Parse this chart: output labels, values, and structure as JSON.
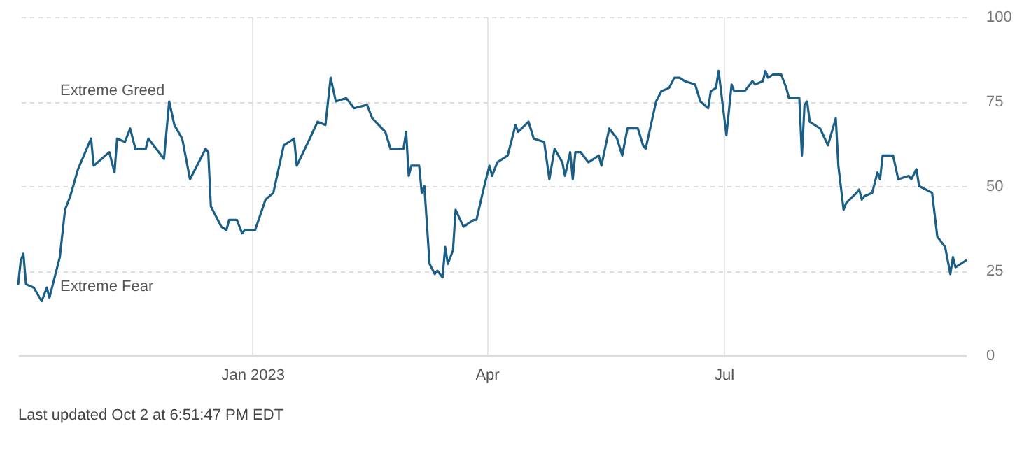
{
  "chart_data": {
    "type": "line",
    "x": [
      "2022-10-03",
      "2022-10-04",
      "2022-10-05",
      "2022-10-06",
      "2022-10-09",
      "2022-10-12",
      "2022-10-14",
      "2022-10-15",
      "2022-10-17",
      "2022-10-19",
      "2022-10-21",
      "2022-10-23",
      "2022-10-26",
      "2022-10-31",
      "2022-11-01",
      "2022-11-07",
      "2022-11-09",
      "2022-11-10",
      "2022-11-13",
      "2022-11-15",
      "2022-11-17",
      "2022-11-21",
      "2022-11-22",
      "2022-11-28",
      "2022-11-30",
      "2022-12-02",
      "2022-12-05",
      "2022-12-08",
      "2022-12-14",
      "2022-12-15",
      "2022-12-16",
      "2022-12-20",
      "2022-12-22",
      "2022-12-23",
      "2022-12-26",
      "2022-12-28",
      "2022-12-29",
      "2023-01-02",
      "2023-01-06",
      "2023-01-09",
      "2023-01-13",
      "2023-01-17",
      "2023-01-18",
      "2023-01-23",
      "2023-01-26",
      "2023-01-29",
      "2023-01-31",
      "2023-02-02",
      "2023-02-06",
      "2023-02-09",
      "2023-02-14",
      "2023-02-16",
      "2023-02-21",
      "2023-02-23",
      "2023-02-28",
      "2023-03-01",
      "2023-03-02",
      "2023-03-03",
      "2023-03-06",
      "2023-03-07",
      "2023-03-08",
      "2023-03-10",
      "2023-03-12",
      "2023-03-13",
      "2023-03-15",
      "2023-03-16",
      "2023-03-17",
      "2023-03-19",
      "2023-03-20",
      "2023-03-23",
      "2023-03-27",
      "2023-03-28",
      "2023-03-31",
      "2023-04-02",
      "2023-04-03",
      "2023-04-05",
      "2023-04-09",
      "2023-04-10",
      "2023-04-12",
      "2023-04-13",
      "2023-04-17",
      "2023-04-19",
      "2023-04-23",
      "2023-04-25",
      "2023-04-27",
      "2023-04-30",
      "2023-05-01",
      "2023-05-03",
      "2023-05-04",
      "2023-05-05",
      "2023-05-07",
      "2023-05-09",
      "2023-05-10",
      "2023-05-14",
      "2023-05-15",
      "2023-05-18",
      "2023-05-21",
      "2023-05-23",
      "2023-05-25",
      "2023-05-29",
      "2023-05-31",
      "2023-06-01",
      "2023-06-05",
      "2023-06-07",
      "2023-06-10",
      "2023-06-12",
      "2023-06-14",
      "2023-06-16",
      "2023-06-20",
      "2023-06-22",
      "2023-06-25",
      "2023-06-26",
      "2023-06-28",
      "2023-06-29",
      "2023-07-02",
      "2023-07-04",
      "2023-07-05",
      "2023-07-09",
      "2023-07-12",
      "2023-07-13",
      "2023-07-16",
      "2023-07-17",
      "2023-07-18",
      "2023-07-20",
      "2023-07-23",
      "2023-07-25",
      "2023-07-26",
      "2023-07-30",
      "2023-07-31",
      "2023-08-01",
      "2023-08-02",
      "2023-08-03",
      "2023-08-07",
      "2023-08-10",
      "2023-08-13",
      "2023-08-14",
      "2023-08-16",
      "2023-08-17",
      "2023-08-21",
      "2023-08-22",
      "2023-08-23",
      "2023-08-24",
      "2023-08-27",
      "2023-08-29",
      "2023-08-30",
      "2023-08-31",
      "2023-09-04",
      "2023-09-06",
      "2023-09-10",
      "2023-09-11",
      "2023-09-13",
      "2023-09-14",
      "2023-09-19",
      "2023-09-21",
      "2023-09-24",
      "2023-09-26",
      "2023-09-27",
      "2023-09-28",
      "2023-10-02"
    ],
    "series": [
      {
        "color": "#1b5f86",
        "values": [
          21,
          28,
          30,
          21,
          20,
          16,
          20,
          17,
          23,
          29,
          43,
          47,
          55,
          64,
          56,
          60,
          54,
          64,
          63,
          67,
          61,
          61,
          64,
          58,
          75,
          68,
          64,
          52,
          61,
          60,
          44,
          38,
          37,
          40,
          40,
          36,
          37,
          37,
          46,
          48,
          62,
          64,
          56,
          64,
          69,
          68,
          82,
          75,
          76,
          73,
          74,
          70,
          66,
          61,
          61,
          66,
          53,
          56,
          56,
          48,
          50,
          27,
          24,
          25,
          23,
          32,
          27,
          31,
          43,
          38,
          40,
          40,
          50,
          56,
          53,
          57,
          59,
          62,
          68,
          66,
          69,
          64,
          63,
          52,
          61,
          57,
          53,
          60,
          52,
          60,
          60,
          58,
          57,
          59,
          56,
          67,
          64,
          59,
          67,
          67,
          62,
          61,
          75,
          78,
          79,
          82,
          82,
          81,
          80,
          75,
          73,
          78,
          79,
          84,
          65,
          80,
          78,
          78,
          81,
          80,
          81,
          84,
          82,
          83,
          83,
          79,
          76,
          76,
          59,
          74,
          75,
          69,
          67,
          62,
          70,
          56,
          43,
          45,
          48,
          49,
          46,
          47,
          48,
          54,
          52,
          59,
          59,
          52,
          53,
          52,
          55,
          50,
          48,
          35,
          32,
          24,
          29,
          26,
          28
        ]
      }
    ],
    "xlim": [
      "2022-10-03",
      "2023-10-02"
    ],
    "xticks": [
      {
        "value": "2023-01-01",
        "label": "Jan 2023"
      },
      {
        "value": "2023-04-01",
        "label": "Apr"
      },
      {
        "value": "2023-07-01",
        "label": "Jul"
      }
    ],
    "ylim": [
      0,
      100
    ],
    "yticks": [
      0,
      25,
      50,
      75,
      100
    ],
    "grid": true,
    "marker": "none",
    "line_style": "solid",
    "annotations": [
      "Extreme Greed",
      "Extreme Fear",
      "Last updated Oct 2 at 6:51:47 PM EDT"
    ]
  }
}
